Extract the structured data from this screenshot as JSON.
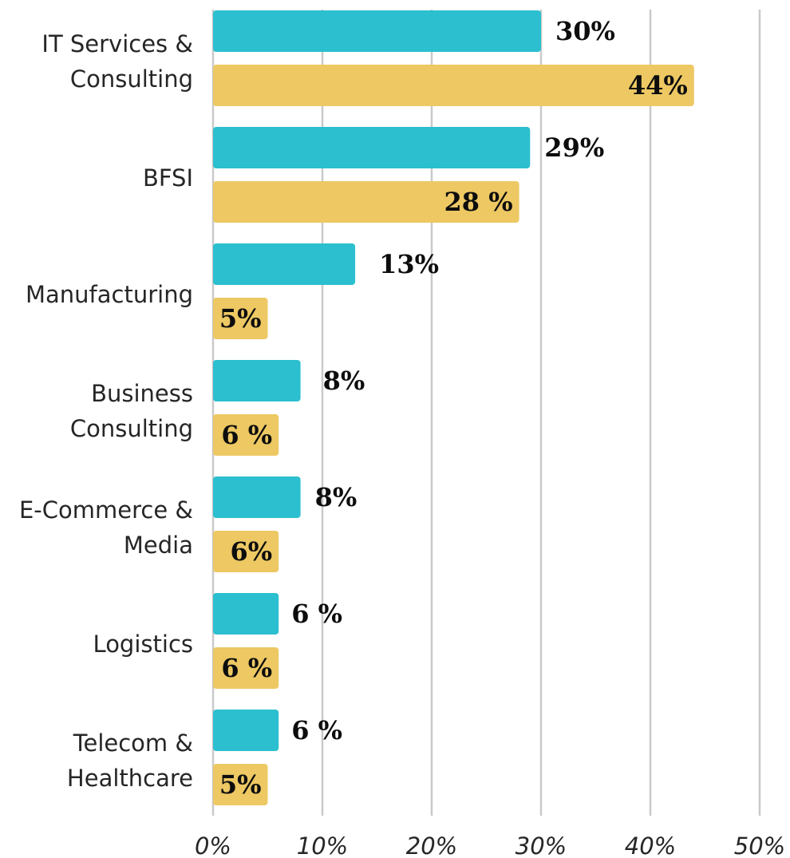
{
  "chart_data": {
    "type": "bar",
    "orientation": "horizontal",
    "categories": [
      [
        "IT Services &",
        "Consulting"
      ],
      [
        "BFSI"
      ],
      [
        "Manufacturing"
      ],
      [
        "Business",
        "Consulting"
      ],
      [
        "E-Commerce &",
        "Media"
      ],
      [
        "Logistics"
      ],
      [
        "Telecom &",
        "Healthcare"
      ]
    ],
    "series": [
      {
        "color": "#2bbfcf",
        "values": [
          30,
          29,
          13,
          8,
          8,
          6,
          6
        ],
        "labels": [
          "30%",
          "29%",
          "13%",
          "8%",
          "8%",
          "6 %",
          "6 %"
        ]
      },
      {
        "color": "#edc863",
        "values": [
          44,
          28,
          5,
          6,
          6,
          6,
          5
        ],
        "labels": [
          "44%",
          "28 %",
          "5%",
          "6 %",
          "6%",
          "6 %",
          "5%"
        ]
      }
    ],
    "xlim": [
      0,
      50
    ],
    "xticks": [
      "0%",
      "10%",
      "20%",
      "30%",
      "40%",
      "50%"
    ],
    "grid": true,
    "legend": "none"
  }
}
